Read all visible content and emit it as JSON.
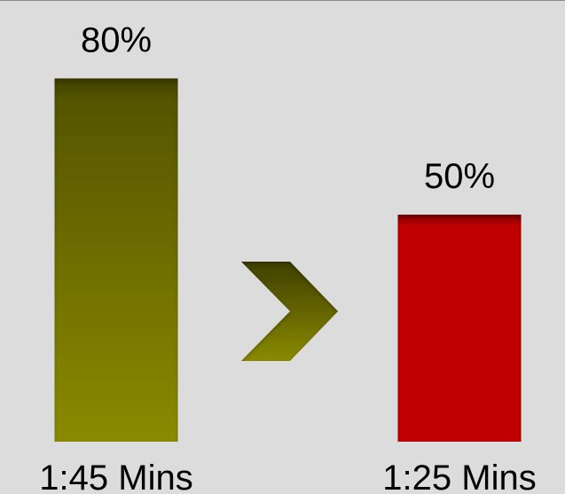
{
  "chart_data": {
    "type": "bar",
    "categories": [
      "1:45 Mins",
      "1:25 Mins"
    ],
    "values": [
      80,
      50
    ],
    "value_labels": [
      "80%",
      "50%"
    ],
    "colors": [
      "#808000",
      "#c00000"
    ],
    "ylim": [
      0,
      100
    ],
    "title": "",
    "xlabel": "",
    "ylabel": ""
  },
  "connector": {
    "icon": "chevron-right-icon",
    "color": "#808000"
  }
}
